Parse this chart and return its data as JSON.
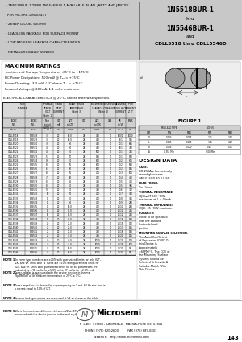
{
  "bg_color": "#c8c8c8",
  "body_bg": "#ffffff",
  "header_bg": "#c8c8c8",
  "footer_bg": "#ffffff",
  "header_left_lines": [
    "  • 1N5518BUR-1 THRU 1N5546BUR-1 AVAILABLE IN JAN, JANTX AND JANTXV",
    "    PER MIL-PRF-19500/437",
    "  • ZENER DIODE, 500mW",
    "  • LEADLESS PACKAGE FOR SURFACE MOUNT",
    "  • LOW REVERSE LEAKAGE CHARACTERISTICS",
    "  • METALLURGICALLY BONDED"
  ],
  "header_right_line1": "1N5518BUR-1",
  "header_right_line2": "thru",
  "header_right_line3": "1N5546BUR-1",
  "header_right_line4": "and",
  "header_right_line5": "CDLL5518 thru CDLL5546D",
  "max_ratings_title": "MAXIMUM RATINGS",
  "max_ratings_lines": [
    "Junction and Storage Temperature:  -65°C to +175°C",
    "DC Power Dissipation:  500 mW @ T₂ₓ = +75°C",
    "Power Derating:  3.3 mW / °C above T₂ₓ = +75°C",
    "Forward Voltage @ 200mA: 1.1 volts maximum"
  ],
  "elec_char_title": "ELECTRICAL CHARACTERISTICS @ 25°C, unless otherwise specified.",
  "col_headers_row1": [
    "TYPE NUMBER",
    "NOMINAL ZENER VOLT (Note 1)",
    "ZENER TEST CURRENT",
    "MAXI ZENER IMPEDANCE (Note 3)",
    "MAXIMUM REVERSE LEAKAGE CURRENT (Note 4)",
    "MAXIMUM REGULATOR CURRENT",
    "LOW CURRENT Z T"
  ],
  "col_headers_row2": [
    "JEDEC",
    "Nom typ (NOTE 2)",
    "IZT",
    "ZZT at IZT",
    "ZZK at IZK",
    "IR at VR",
    "IMAX",
    "AZT (NOTE 5)",
    "ZZK"
  ],
  "col_headers_row3": [
    "VOLTS (V)",
    "mA",
    "OHMS",
    "OHMS   mA",
    "OHMS   mA",
    "μA   VOLTS",
    "mA",
    "%/°C",
    "mA"
  ],
  "table_rows": [
    [
      "CDLL5518",
      "1N5518",
      "3.3",
      "20",
      "10.0",
      "28",
      "400",
      "1",
      "100",
      "1",
      "1000",
      "0.062",
      "10"
    ],
    [
      "CDLL5519",
      "1N5519",
      "3.6",
      "20",
      "10.0",
      "28",
      "400",
      "1",
      "75",
      "1",
      "935",
      "0.062",
      "10"
    ],
    [
      "CDLL5520",
      "1N5520",
      "3.9",
      "20",
      "9.0",
      "28",
      "400",
      "1",
      "50",
      "1",
      "865",
      "0.062",
      "10"
    ],
    [
      "CDLL5521",
      "1N5521",
      "4.3",
      "20",
      "9.0",
      "28",
      "400",
      "1",
      "25",
      "1",
      "790",
      "0.056",
      "10"
    ],
    [
      "CDLL5522",
      "1N5522",
      "4.7",
      "20",
      "8.0",
      "28",
      "500",
      "1",
      "10",
      "1",
      "725",
      "0.024",
      "10"
    ],
    [
      "CDLL5523",
      "1N5523",
      "5.1",
      "20",
      "7.0",
      "28",
      "550",
      "1",
      "10",
      "1",
      "670",
      "0.018",
      "10"
    ],
    [
      "CDLL5524",
      "1N5524",
      "5.6",
      "20",
      "5.0",
      "28",
      "600",
      "1",
      "10",
      "2",
      "605",
      "0.012",
      "10"
    ],
    [
      "CDLL5525",
      "1N5525",
      "6.0",
      "20",
      "3.5",
      "28",
      "600",
      "1",
      "10",
      "2",
      "560",
      "0.003",
      "10"
    ],
    [
      "CDLL5526",
      "1N5526",
      "6.2",
      "20",
      "3.0",
      "28",
      "600",
      "1",
      "10",
      "2",
      "545",
      "0.003",
      "10"
    ],
    [
      "CDLL5527",
      "1N5527",
      "6.8",
      "20",
      "3.5",
      "28",
      "700",
      "1",
      "10",
      "3",
      "500",
      "0.003",
      "10"
    ],
    [
      "CDLL5528",
      "1N5528",
      "7.5",
      "20",
      "4.0",
      "28",
      "700",
      "1",
      "10",
      "4",
      "450",
      "0.010",
      "10"
    ],
    [
      "CDLL5529",
      "1N5529",
      "8.2",
      "20",
      "4.5",
      "28",
      "750",
      "1",
      "10",
      "5",
      "410",
      "0.018",
      "10"
    ],
    [
      "CDLL5530",
      "1N5530",
      "8.7",
      "20",
      "5.0",
      "28",
      "750",
      "1",
      "10",
      "5",
      "385",
      "0.022",
      "10"
    ],
    [
      "CDLL5531",
      "1N5531",
      "9.1",
      "20",
      "5.0",
      "28",
      "750",
      "1",
      "10",
      "6",
      "370",
      "0.025",
      "10"
    ],
    [
      "CDLL5532",
      "1N5532",
      "10",
      "20",
      "7.0",
      "28",
      "700",
      "1",
      "10",
      "7",
      "340",
      "0.030",
      "10"
    ],
    [
      "CDLL5533",
      "1N5533",
      "11",
      "20",
      "8.0",
      "28",
      "700",
      "1",
      "20",
      "8",
      "305",
      "0.035",
      "10"
    ],
    [
      "CDLL5534",
      "1N5534",
      "12",
      "20",
      "9.0",
      "28",
      "700",
      "1",
      "20",
      "9",
      "280",
      "0.038",
      "10"
    ],
    [
      "CDLL5535",
      "1N5535",
      "13",
      "20",
      "10.0",
      "28",
      "700",
      "1",
      "20",
      "10",
      "260",
      "0.040",
      "10"
    ],
    [
      "CDLL5536",
      "1N5536",
      "15",
      "20",
      "14.0",
      "28",
      "700",
      "1",
      "20",
      "11",
      "225",
      "0.043",
      "10"
    ],
    [
      "CDLL5537",
      "1N5537",
      "16",
      "20",
      "15.0",
      "28",
      "700",
      "1",
      "20",
      "12",
      "210",
      "0.044",
      "10"
    ],
    [
      "CDLL5538",
      "1N5538",
      "18",
      "20",
      "20.0",
      "28",
      "750",
      "1",
      "20",
      "14",
      "190",
      "0.046",
      "10"
    ],
    [
      "CDLL5539",
      "1N5539",
      "20",
      "20",
      "22.0",
      "28",
      "750",
      "1",
      "20",
      "15",
      "170",
      "0.047",
      "10"
    ],
    [
      "CDLL5540",
      "1N5540",
      "22",
      "20",
      "23.0",
      "28",
      "750",
      "1",
      "20",
      "17",
      "155",
      "0.048",
      "10"
    ],
    [
      "CDLL5541",
      "1N5541",
      "24",
      "20",
      "25.0",
      "28",
      "750",
      "1",
      "20",
      "18",
      "140",
      "0.049",
      "10"
    ],
    [
      "CDLL5542",
      "1N5542",
      "27",
      "20",
      "35.0",
      "28",
      "750",
      "1",
      "20",
      "21",
      "125",
      "0.050",
      "10"
    ],
    [
      "CDLL5543",
      "1N5543",
      "30",
      "20",
      "40.0",
      "28",
      "1000",
      "1",
      "20",
      "22",
      "113",
      "0.051",
      "10"
    ],
    [
      "CDLL5544",
      "1N5544",
      "33",
      "20",
      "45.0",
      "28",
      "1000",
      "1",
      "20",
      "25",
      "102",
      "0.052",
      "10"
    ],
    [
      "CDLL5545",
      "1N5545",
      "36",
      "20",
      "50.0",
      "28",
      "1000",
      "1",
      "20",
      "27",
      "94",
      "0.052",
      "10"
    ],
    [
      "CDLL5546",
      "1N5546",
      "39",
      "20",
      "60.0",
      "28",
      "1000",
      "1",
      "20",
      "30",
      "87",
      "0.053",
      "10"
    ]
  ],
  "notes": [
    [
      "NOTE 1",
      "Do zener type numbers are ±20% with guaranteed limits for only VZT, IZK, and VR. Units with 'A' suffix are ±10% with guaranteed limits for VZT, and VR. Units with guaranteed limits for all six parameters are indicated by a 'B' suffix for ±5.0% units, 'C' suffix for ±2.0% and 'D' suffix for ±1.0%."
    ],
    [
      "NOTE 2",
      "Zener voltage is measured with the device junction in thermal equilibrium at an ambient temperature of 25°C ± 1°C."
    ],
    [
      "NOTE 3",
      "Zener impedance is derived by superimposing on 1 mA, 60 Hz rms sine in a current equal to 10% of IZT."
    ],
    [
      "NOTE 4",
      "Reverse leakage currents are measured at VR as shown on the table."
    ],
    [
      "NOTE 5",
      "ΔVz is the maximum difference between VZ at IZT1 and VZ at IZT2 measured with the device junction in thermal equilibrium."
    ]
  ],
  "figure_title": "FIGURE 1",
  "dim_table": [
    [
      "",
      "MIL LEAD TYPE",
      "",
      "INCHES",
      ""
    ],
    [
      "DIM",
      "MIN",
      "MAX",
      "MIN",
      "MAX"
    ],
    [
      "D",
      "0.083",
      "0.095",
      "2.11",
      "2.41"
    ],
    [
      "L",
      "0.136",
      "0.165",
      "3.45",
      "4.19"
    ],
    [
      "d",
      "0.016",
      "0.020",
      "0.41",
      "0.51"
    ],
    [
      "A",
      "0.354 Min",
      "",
      "9.00 Min",
      ""
    ]
  ],
  "design_data_title": "DESIGN DATA",
  "design_data": [
    [
      "bold",
      "CASE: ",
      "DO-213AA, hermetically sealed glass case.  (MELF, SOD-80, LL-34)"
    ],
    [
      "bold",
      "LEAD FINISH: ",
      "Tin / Lead"
    ],
    [
      "bold",
      "THERMAL RESISTANCE: ",
      "(θJC)≤CT 300 °C/W maximum at L = 0 inch"
    ],
    [
      "bold",
      "THERMAL IMPEDANCE: ",
      "(ΘJL): 35 °C/W maximum"
    ],
    [
      "bold",
      "POLARITY: ",
      "Diode to be operated with the banded (cathode) end positive."
    ],
    [
      "bold",
      "MOUNTING SURFACE SELECTION: ",
      "The Axial Coefficient of Expansion (COE) Of this Device is Approximately ±6PPM/°C. The COE of the Mounting Surface System Should Be Selected To Provide A Suitable Match With This Device."
    ]
  ],
  "footer_address": "6  LAKE  STREET,  LAWRENCE,  MASSACHUSETTS  01841",
  "footer_phone": "PHONE (978) 620-2600",
  "footer_fax": "FAX (978) 689-0803",
  "footer_web": "WEBSITE:  http://www.microsemi.com",
  "page_number": "143"
}
